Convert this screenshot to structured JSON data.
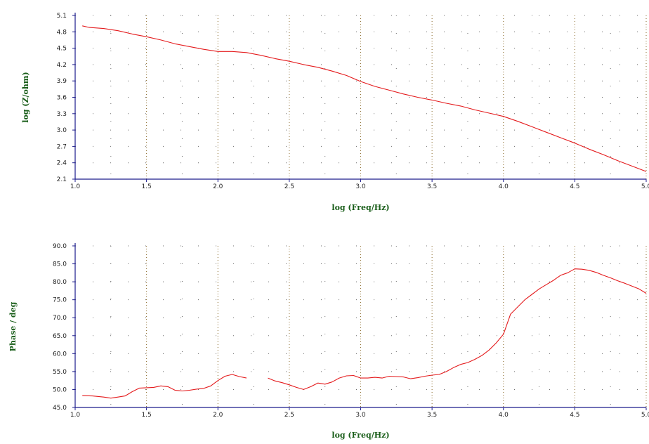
{
  "colors": {
    "series": "#e41a1c",
    "axis_label": "#1a5e1a",
    "grid": "#6f6f6f",
    "major_grid": "#8a6a2a",
    "axis": "#1c1c8c"
  },
  "chart_data": [
    {
      "type": "line",
      "xlabel": "log (Freq/Hz)",
      "ylabel": "log (Z/ohm)",
      "xlim": [
        1.0,
        5.0
      ],
      "ylim": [
        2.1,
        5.1
      ],
      "xticks": [
        "1.0",
        "1.5",
        "2.0",
        "2.5",
        "3.0",
        "3.5",
        "4.0",
        "4.5",
        "5.0"
      ],
      "yticks": [
        "2.1",
        "2.4",
        "2.7",
        "3.0",
        "3.3",
        "3.6",
        "3.9",
        "4.2",
        "4.5",
        "4.8",
        "5.1"
      ],
      "grid": true,
      "series": [
        {
          "x": [
            1.05,
            1.1,
            1.2,
            1.3,
            1.4,
            1.5,
            1.6,
            1.7,
            1.8,
            1.9,
            2.0,
            2.1,
            2.2,
            2.3,
            2.4,
            2.5,
            2.6,
            2.7,
            2.8,
            2.9,
            3.0,
            3.1,
            3.2,
            3.3,
            3.4,
            3.5,
            3.6,
            3.7,
            3.8,
            3.9,
            4.0,
            4.1,
            4.2,
            4.3,
            4.4,
            4.5,
            4.6,
            4.7,
            4.8,
            4.9,
            5.0
          ],
          "y": [
            4.91,
            4.88,
            4.86,
            4.82,
            4.76,
            4.71,
            4.65,
            4.58,
            4.53,
            4.48,
            4.44,
            4.44,
            4.42,
            4.37,
            4.31,
            4.26,
            4.2,
            4.15,
            4.08,
            4.0,
            3.89,
            3.8,
            3.73,
            3.66,
            3.6,
            3.55,
            3.49,
            3.44,
            3.37,
            3.31,
            3.25,
            3.16,
            3.06,
            2.96,
            2.86,
            2.76,
            2.65,
            2.55,
            2.44,
            2.34,
            2.24
          ]
        }
      ]
    },
    {
      "type": "line",
      "xlabel": "log (Freq/Hz)",
      "ylabel": "Phase / deg",
      "xlim": [
        1.0,
        5.0
      ],
      "ylim": [
        45.0,
        90.0
      ],
      "xticks": [
        "1.0",
        "1.5",
        "2.0",
        "2.5",
        "3.0",
        "3.5",
        "4.0",
        "4.5",
        "5.0"
      ],
      "yticks": [
        "45.0",
        "50.0",
        "55.0",
        "60.0",
        "65.0",
        "70.0",
        "75.0",
        "80.0",
        "85.0",
        "90.0"
      ],
      "grid": true,
      "series": [
        {
          "x": [
            1.05,
            1.12,
            1.2,
            1.25,
            1.3,
            1.35,
            1.4,
            1.45,
            1.5,
            1.55,
            1.6,
            1.65,
            1.7,
            1.75,
            1.8,
            1.85,
            1.9,
            1.95,
            2.0,
            2.05,
            2.1,
            2.15,
            2.2
          ],
          "y": [
            48.3,
            48.2,
            47.9,
            47.6,
            47.9,
            48.2,
            49.4,
            50.4,
            50.5,
            50.6,
            51.0,
            50.8,
            49.8,
            49.6,
            49.8,
            50.1,
            50.3,
            51.0,
            52.5,
            53.7,
            54.2,
            53.6,
            53.2
          ]
        },
        {
          "x": [
            2.35,
            2.4,
            2.45,
            2.5,
            2.55,
            2.6,
            2.65,
            2.7,
            2.75,
            2.8,
            2.85,
            2.9,
            2.95,
            3.0,
            3.05,
            3.1,
            3.15,
            3.2,
            3.25,
            3.3,
            3.35,
            3.4,
            3.45,
            3.5,
            3.55,
            3.6,
            3.65,
            3.7,
            3.75,
            3.8,
            3.85,
            3.9,
            3.95,
            4.0,
            4.05,
            4.1,
            4.15,
            4.2,
            4.25,
            4.3,
            4.35,
            4.4,
            4.45,
            4.5,
            4.55,
            4.6,
            4.65,
            4.7,
            4.75,
            4.8,
            4.85,
            4.9,
            4.95,
            5.0
          ],
          "y": [
            53.2,
            52.4,
            51.9,
            51.3,
            50.6,
            50.0,
            50.8,
            51.8,
            51.5,
            52.1,
            53.2,
            53.8,
            53.9,
            53.2,
            53.2,
            53.4,
            53.2,
            53.7,
            53.6,
            53.5,
            53.0,
            53.3,
            53.7,
            54.0,
            54.2,
            55.0,
            56.1,
            57.0,
            57.5,
            58.4,
            59.5,
            61.0,
            63.0,
            65.4,
            71.0,
            73.0,
            75.0,
            76.5,
            78.0,
            79.2,
            80.4,
            81.8,
            82.5,
            83.6,
            83.5,
            83.2,
            82.6,
            81.8,
            81.1,
            80.3,
            79.6,
            78.8,
            78.0,
            76.8
          ]
        }
      ]
    }
  ]
}
